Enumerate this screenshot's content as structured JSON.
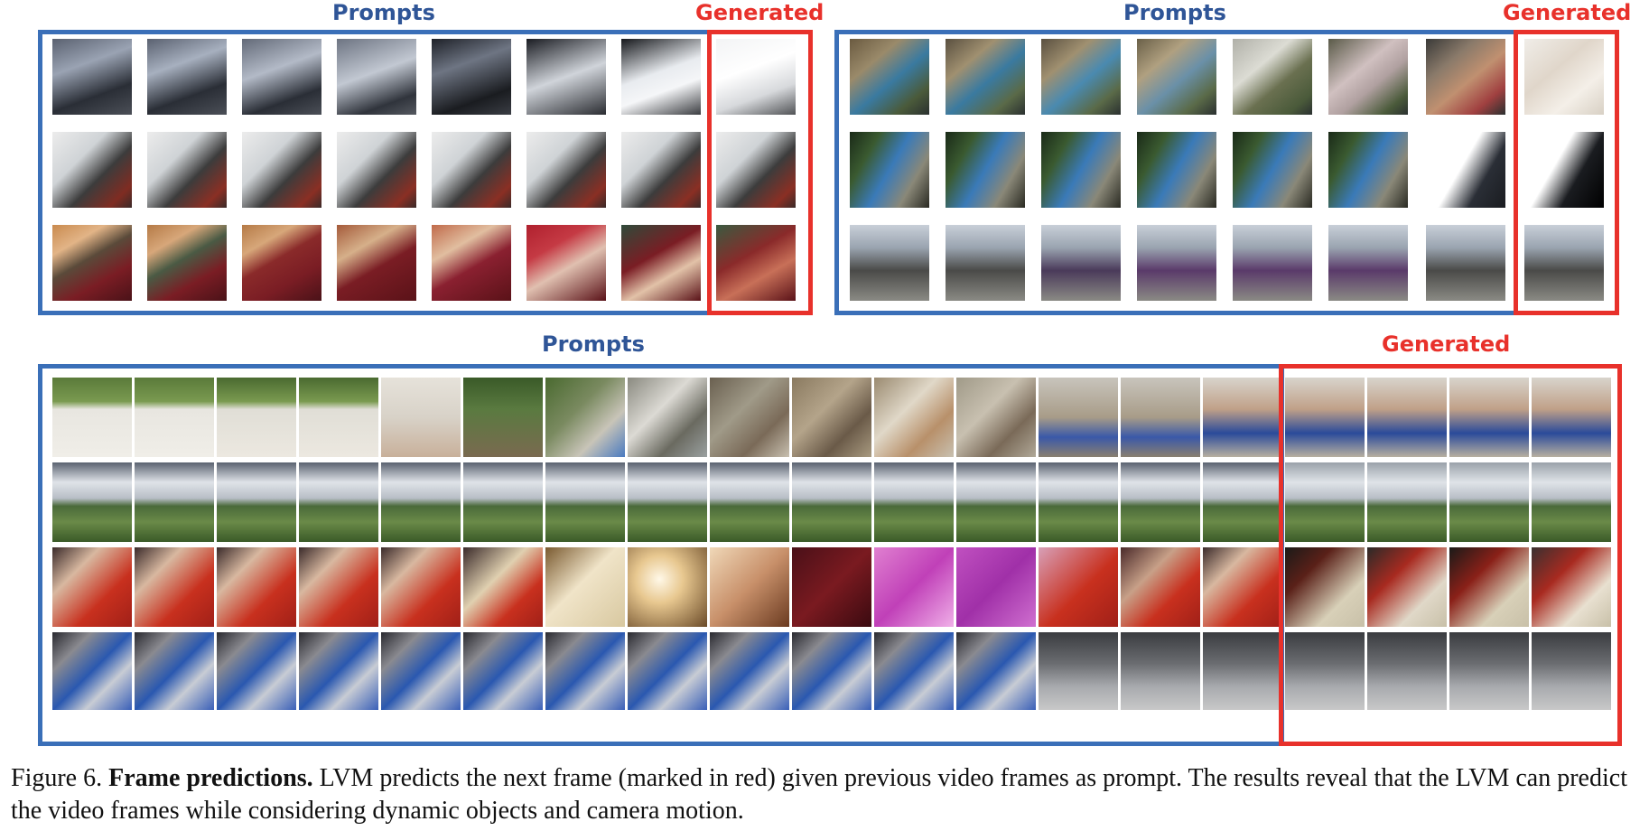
{
  "panels": {
    "top_left": {
      "prompts_label": "Prompts",
      "generated_label": "Generated"
    },
    "top_right": {
      "prompts_label": "Prompts",
      "generated_label": "Generated"
    },
    "bottom": {
      "prompts_label": "Prompts",
      "generated_label": "Generated"
    }
  },
  "caption": {
    "figure_number": "Figure 6.",
    "title": "Frame predictions.",
    "text": "LVM predicts the next frame (marked in red) given previous video frames as prompt. The results reveal that the LVM can predict the video frames while considering dynamic objects and camera motion."
  },
  "colors": {
    "prompt_box": "#3a6fb8",
    "generated_box": "#e8312b",
    "prompt_label": "#2f5597",
    "generated_label": "#e8312b"
  }
}
